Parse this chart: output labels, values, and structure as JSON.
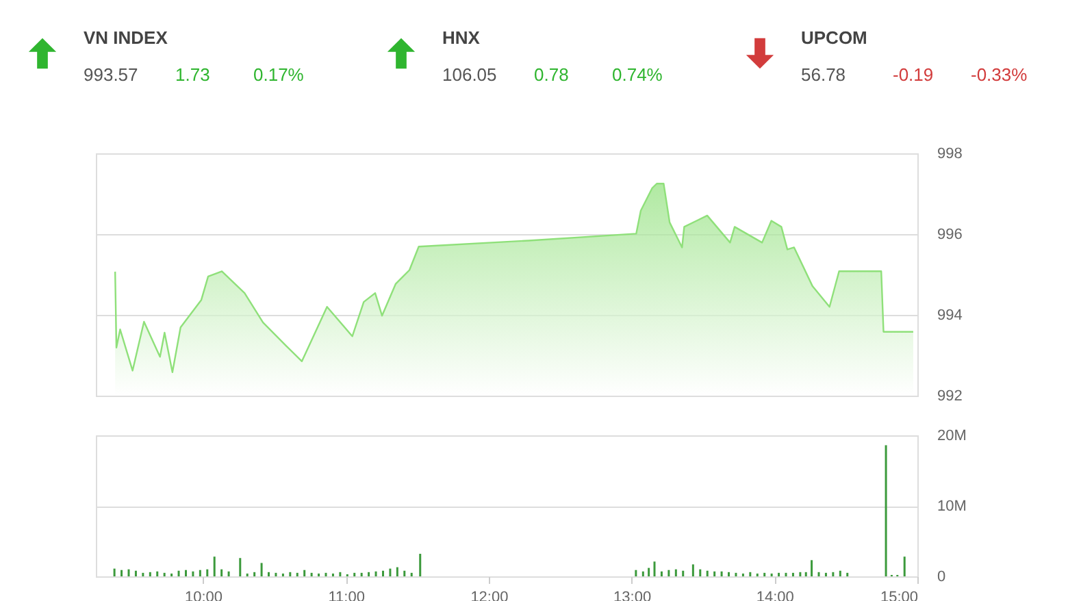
{
  "chart_data": [
    {
      "type": "other",
      "data_labels": true,
      "categories": [
        "VN INDEX",
        "HNX",
        "UPCOM"
      ],
      "series": [
        {
          "values": [
            993.57,
            106.05,
            56.78
          ],
          "colors": [
            "#555555",
            "#555555",
            "#555555"
          ]
        },
        {
          "values": [
            1.73,
            0.78,
            -0.19
          ],
          "colors": [
            "#2fb52f",
            "#2fb52f",
            "#d23c3c"
          ]
        },
        {
          "values": [
            0.17,
            0.74,
            -0.33
          ],
          "value_labels": [
            "0.17%",
            "0.74%",
            "-0.33%"
          ],
          "colors": [
            "#2fb52f",
            "#2fb52f",
            "#d23c3c"
          ]
        }
      ]
    },
    {
      "type": "area",
      "color": "#8fe07a",
      "xlim": [
        9.25,
        15
      ],
      "ylim": [
        992,
        998
      ],
      "yticks": [
        992,
        994,
        996,
        998
      ],
      "grid": "y",
      "tick_labels": "y",
      "x": [
        9.385,
        9.394,
        9.42,
        9.507,
        9.587,
        9.699,
        9.731,
        9.786,
        9.843,
        9.988,
        10.036,
        10.132,
        10.291,
        10.42,
        10.58,
        10.692,
        10.868,
        11.045,
        11.125,
        11.205,
        11.253,
        11.349,
        11.445,
        11.51,
        12.279,
        13.032,
        13.064,
        13.144,
        13.176,
        13.224,
        13.266,
        13.353,
        13.368,
        13.529,
        13.689,
        13.721,
        13.913,
        13.978,
        14.048,
        14.09,
        14.137,
        14.266,
        14.385,
        14.452,
        14.507,
        14.747,
        14.763,
        14.971
      ],
      "values": [
        995.07,
        993.19,
        993.64,
        992.62,
        993.83,
        992.96,
        993.56,
        992.58,
        993.69,
        994.37,
        994.95,
        995.08,
        994.54,
        993.81,
        993.24,
        992.85,
        994.2,
        993.47,
        994.32,
        994.54,
        993.98,
        994.77,
        995.11,
        995.69,
        995.84,
        996.01,
        996.58,
        997.14,
        997.25,
        997.25,
        996.29,
        995.67,
        996.18,
        996.46,
        995.79,
        996.18,
        995.79,
        996.33,
        996.18,
        995.62,
        995.67,
        994.71,
        994.2,
        995.08,
        995.08,
        995.08,
        993.58,
        993.58
      ]
    },
    {
      "type": "bar",
      "color": "#3c9a3c",
      "xlim": [
        9.25,
        15
      ],
      "ylim": [
        0,
        20
      ],
      "grid": "y",
      "xticks": [
        {
          "value": 10,
          "label": "10:00"
        },
        {
          "value": 11,
          "label": "11:00"
        },
        {
          "value": 12,
          "label": "12:00"
        },
        {
          "value": 13,
          "label": "13:00"
        },
        {
          "value": 14,
          "label": "14:00"
        },
        {
          "value": 15,
          "label": "15:00"
        }
      ],
      "yticks": [
        0,
        {
          "value": 10,
          "label": "10M"
        },
        {
          "value": 20,
          "label": "20M"
        }
      ],
      "x": [
        9.38,
        9.43,
        9.48,
        9.53,
        9.58,
        9.63,
        9.68,
        9.73,
        9.78,
        9.83,
        9.88,
        9.93,
        9.98,
        10.03,
        10.08,
        10.13,
        10.18,
        10.26,
        10.31,
        10.36,
        10.41,
        10.46,
        10.51,
        10.56,
        10.61,
        10.66,
        10.71,
        10.76,
        10.81,
        10.86,
        10.91,
        10.96,
        11.01,
        11.06,
        11.11,
        11.16,
        11.21,
        11.26,
        11.31,
        11.36,
        11.41,
        11.46,
        11.52,
        13.03,
        13.08,
        13.12,
        13.16,
        13.21,
        13.26,
        13.31,
        13.36,
        13.43,
        13.48,
        13.53,
        13.58,
        13.63,
        13.68,
        13.73,
        13.78,
        13.83,
        13.88,
        13.93,
        13.98,
        14.03,
        14.08,
        14.13,
        14.18,
        14.22,
        14.26,
        14.31,
        14.36,
        14.41,
        14.46,
        14.51,
        14.78,
        14.82,
        14.86,
        14.91
      ],
      "values": [
        1.1,
        0.9,
        1.0,
        0.8,
        0.5,
        0.6,
        0.7,
        0.5,
        0.4,
        0.8,
        0.9,
        0.7,
        0.9,
        1.0,
        2.8,
        1.0,
        0.7,
        2.6,
        0.4,
        0.6,
        1.9,
        0.6,
        0.5,
        0.4,
        0.6,
        0.5,
        0.9,
        0.5,
        0.4,
        0.5,
        0.4,
        0.6,
        0.3,
        0.5,
        0.5,
        0.6,
        0.7,
        0.8,
        1.1,
        1.3,
        0.8,
        0.5,
        3.2,
        0.9,
        0.7,
        1.2,
        2.1,
        0.7,
        0.9,
        1.0,
        0.8,
        1.7,
        1.0,
        0.8,
        0.7,
        0.7,
        0.6,
        0.5,
        0.4,
        0.6,
        0.4,
        0.5,
        0.4,
        0.5,
        0.5,
        0.5,
        0.6,
        0.6,
        2.3,
        0.6,
        0.5,
        0.6,
        0.8,
        0.5,
        18.6,
        0.2,
        0.2,
        2.8
      ]
    }
  ]
}
